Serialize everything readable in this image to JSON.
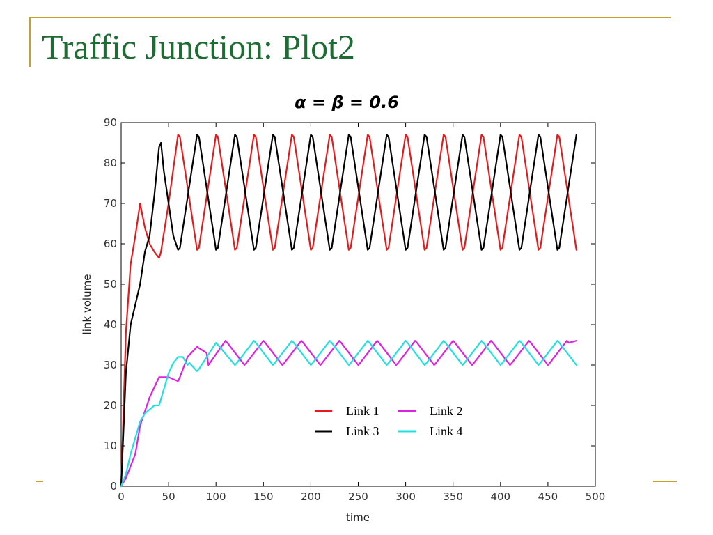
{
  "slide": {
    "title": "Traffic Junction: Plot2",
    "accent_color": "#C8A028",
    "title_color": "#1E6B33"
  },
  "chart_data": {
    "type": "line",
    "title": "α =  β = 0.6",
    "xlabel": "time",
    "ylabel": "link volume",
    "xlim": [
      0,
      500
    ],
    "ylim": [
      0,
      90
    ],
    "xticks": [
      0,
      50,
      100,
      150,
      200,
      250,
      300,
      350,
      400,
      450,
      500
    ],
    "yticks": [
      0,
      10,
      20,
      30,
      40,
      50,
      60,
      70,
      80,
      90
    ],
    "grid": false,
    "legend_position": "lower-center",
    "series": [
      {
        "name": "Link 1",
        "color": "#E41A1C",
        "x": [
          0,
          5,
          10,
          15,
          20,
          25,
          30,
          35,
          40,
          42,
          50,
          60,
          62,
          80,
          82,
          100,
          102,
          120,
          122,
          140,
          142,
          160,
          162,
          180,
          182,
          200,
          202,
          220,
          222,
          240,
          242,
          260,
          262,
          280,
          282,
          300,
          302,
          320,
          322,
          340,
          342,
          360,
          362,
          380,
          382,
          400,
          402,
          420,
          422,
          440,
          442,
          460,
          462,
          480
        ],
        "values": [
          0,
          38,
          55,
          62,
          70,
          64,
          60,
          58,
          56.5,
          58,
          70,
          87,
          86.5,
          58.5,
          59,
          87,
          86.5,
          58.5,
          59,
          87,
          86.5,
          58.5,
          59,
          87,
          86.5,
          58.5,
          59,
          87,
          86.5,
          58.5,
          59,
          87,
          86.5,
          58.5,
          59,
          87,
          86.5,
          58.5,
          59,
          87,
          86.5,
          58.5,
          59,
          87,
          86.5,
          58.5,
          59,
          87,
          86.5,
          58.5,
          59,
          87,
          86.5,
          58.5
        ]
      },
      {
        "name": "Link 2",
        "color": "#E020E0",
        "x": [
          0,
          5,
          10,
          15,
          20,
          30,
          40,
          45,
          50,
          60,
          62,
          70,
          80,
          90,
          92,
          110,
          112,
          130,
          132,
          150,
          152,
          170,
          172,
          190,
          192,
          210,
          212,
          230,
          232,
          250,
          252,
          270,
          272,
          290,
          292,
          310,
          312,
          330,
          332,
          350,
          352,
          370,
          372,
          390,
          392,
          410,
          412,
          430,
          432,
          450,
          452,
          470,
          472,
          480
        ],
        "values": [
          0,
          2,
          5,
          8,
          15,
          22,
          27,
          27,
          27,
          26,
          27,
          32,
          34.5,
          33,
          30,
          36,
          35.5,
          30,
          30.5,
          36,
          35.5,
          30,
          30.5,
          36,
          35.5,
          30,
          30.5,
          36,
          35.5,
          30,
          30.5,
          36,
          35.5,
          30,
          30.5,
          36,
          35.5,
          30,
          30.5,
          36,
          35.5,
          30,
          30.5,
          36,
          35.5,
          30,
          30.5,
          36,
          35.5,
          30,
          30.5,
          36,
          35.5,
          36
        ]
      },
      {
        "name": "Link 3",
        "color": "#000000",
        "x": [
          0,
          5,
          10,
          15,
          20,
          25,
          30,
          35,
          40,
          42,
          45,
          55,
          60,
          62,
          80,
          82,
          100,
          102,
          120,
          122,
          140,
          142,
          160,
          162,
          180,
          182,
          200,
          202,
          220,
          222,
          240,
          242,
          260,
          262,
          280,
          282,
          300,
          302,
          320,
          322,
          340,
          342,
          360,
          362,
          380,
          382,
          400,
          402,
          420,
          422,
          440,
          442,
          460,
          462,
          480
        ],
        "values": [
          0,
          28,
          40,
          45,
          50,
          58,
          62,
          72,
          84,
          85,
          78,
          62,
          58.5,
          59,
          87,
          86.5,
          58.5,
          59,
          87,
          86.5,
          58.5,
          59,
          87,
          86.5,
          58.5,
          59,
          87,
          86.5,
          58.5,
          59,
          87,
          86.5,
          58.5,
          59,
          87,
          86.5,
          58.5,
          59,
          87,
          86.5,
          58.5,
          59,
          87,
          86.5,
          58.5,
          59,
          87,
          86.5,
          58.5,
          59,
          87,
          86.5,
          58.5,
          59,
          87
        ]
      },
      {
        "name": "Link 4",
        "color": "#22E0E0",
        "x": [
          0,
          5,
          10,
          15,
          20,
          25,
          30,
          35,
          40,
          45,
          50,
          55,
          60,
          65,
          70,
          72,
          80,
          82,
          100,
          102,
          120,
          122,
          140,
          142,
          160,
          162,
          180,
          182,
          200,
          202,
          220,
          222,
          240,
          242,
          260,
          262,
          280,
          282,
          300,
          302,
          320,
          322,
          340,
          342,
          360,
          362,
          380,
          382,
          400,
          402,
          420,
          422,
          440,
          442,
          460,
          462,
          480
        ],
        "values": [
          0,
          3,
          8,
          12,
          16,
          18,
          19,
          20,
          20,
          24,
          28,
          30.5,
          32,
          32,
          30,
          30.5,
          28.5,
          29,
          35.5,
          35,
          30,
          30.5,
          36,
          35.5,
          30,
          30.5,
          36,
          35.5,
          30,
          30.5,
          36,
          35.5,
          30,
          30.5,
          36,
          35.5,
          30,
          30.5,
          36,
          35.5,
          30,
          30.5,
          36,
          35.5,
          30,
          30.5,
          36,
          35.5,
          30,
          30.5,
          36,
          35.5,
          30,
          30.5,
          36,
          35.5,
          30
        ]
      }
    ]
  }
}
